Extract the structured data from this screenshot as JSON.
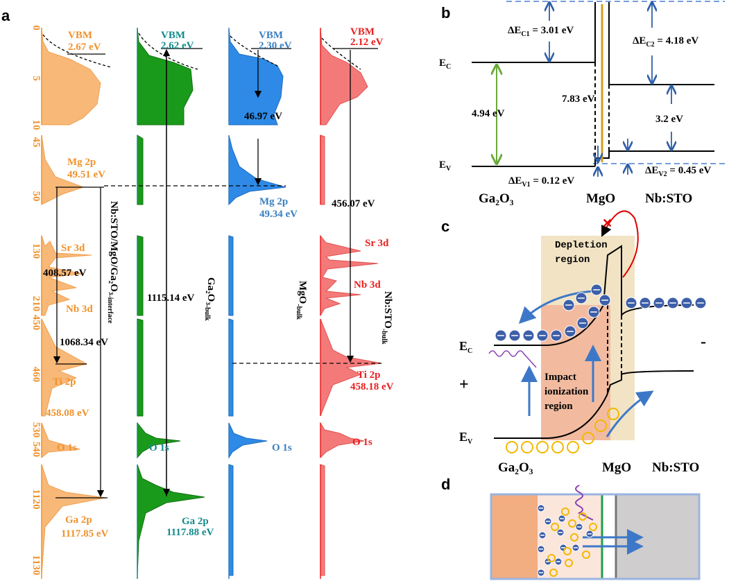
{
  "panel_a": {
    "label": "a",
    "axis_ticks": [
      "0",
      "5",
      "10",
      "45",
      "50",
      "130",
      "210",
      "450",
      "460",
      "530",
      "540",
      "1120",
      "1130"
    ],
    "col1": {
      "vbm": "VBM",
      "vbm_val": "2.67 eV",
      "mg": "Mg 2p",
      "mg_val": "49.51 eV",
      "sr": "Sr 3d",
      "d1": "408.57 eV",
      "nb": "Nb 3d",
      "d2": "1068.34 eV",
      "ti": "Ti 2p",
      "ti_val": "458.08 eV",
      "o": "O 1s",
      "ga": "Ga 2p",
      "ga_val": "1117.85 eV",
      "name": {
        "main": "Nb:STO/MgO/Ga₂O₃",
        "sub": "-interface"
      }
    },
    "col2": {
      "vbm": "VBM",
      "vbm_val": "2.62 eV",
      "d": "1115.14 eV",
      "o": "O 1s",
      "ga": "Ga 2p",
      "ga_val": "1117.88 eV",
      "name": {
        "main": "Ga₂O₃",
        "sub": "-bulk"
      }
    },
    "col3": {
      "vbm": "VBM",
      "vbm_val": "2.30 eV",
      "d": "46.97 eV",
      "mg": "Mg 2p",
      "mg_val": "49.34 eV",
      "o": "O 1s",
      "name": {
        "main": "MgO",
        "sub": "-bulk"
      }
    },
    "col4": {
      "vbm": "VBM",
      "vbm_val": "2.12 eV",
      "d": "456.07 eV",
      "sr": "Sr 3d",
      "nb": "Nb 3d",
      "ti": "Ti 2p",
      "ti_val": "458.18 eV",
      "o": "O 1s",
      "name": {
        "main": "Nb:STO",
        "sub": "-bulk"
      }
    }
  },
  "panel_b": {
    "label": "b",
    "dec1": {
      "main": "ΔE",
      "sub": "C1",
      "rest": " = 3.01 eV"
    },
    "dec2": {
      "main": "ΔE",
      "sub": "C2",
      "rest": " = 4.18 eV"
    },
    "ec": {
      "main": "E",
      "sub": "C"
    },
    "ev": {
      "main": "E",
      "sub": "V"
    },
    "gap_mgo": "7.83 eV",
    "gap_ga": "4.94 eV",
    "gap_sto": "3.2 eV",
    "dev1": {
      "main": "ΔE",
      "sub": "V1",
      "rest": " = 0.12 eV"
    },
    "dev2": {
      "main": "ΔE",
      "sub": "V2",
      "rest": " = 0.45 eV"
    },
    "m1": "Ga₂O₃",
    "m2": "MgO",
    "m3": "Nb:STO"
  },
  "panel_c": {
    "label": "c",
    "depletion": [
      "Depletion",
      "region"
    ],
    "impact": [
      "Impact",
      "ionization",
      "region"
    ],
    "ec": {
      "main": "E",
      "sub": "C"
    },
    "ev": {
      "main": "E",
      "sub": "V"
    },
    "plus": "+",
    "minus": "-",
    "m1": "Ga₂O₃",
    "m2": "MgO",
    "m3": "Nb:STO"
  },
  "panel_d": {
    "label": "d"
  }
}
